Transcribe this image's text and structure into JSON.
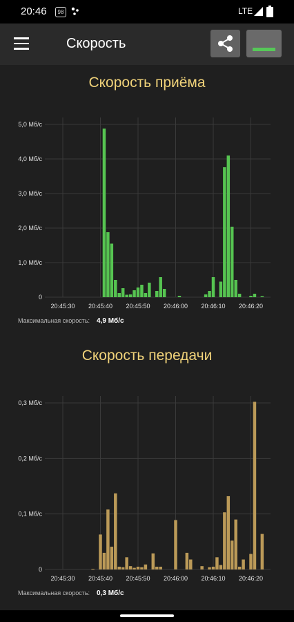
{
  "status": {
    "time": "20:46",
    "badge": "98",
    "network": "LTE"
  },
  "appbar": {
    "title": "Скорость",
    "menu_icon": "menu-icon",
    "share_icon": "share-icon",
    "graph_icon": "graph-view-icon"
  },
  "download": {
    "title": "Скорость приёма",
    "max_label": "Максимальная скорость:",
    "max_value": "4,9 Мб/с"
  },
  "upload": {
    "title": "Скорость передачи",
    "max_label": "Максимальная скорость:",
    "max_value": "0,3 Мб/с"
  },
  "colors": {
    "download": "#56c451",
    "upload": "#bb9a58",
    "title": "#f1d37a",
    "background": "#1f1f1f"
  },
  "chart_data": [
    {
      "type": "bar",
      "title": "Скорость приёма",
      "y_ticks": [
        "0",
        "1,0 Мб/с",
        "2,0 Мб/с",
        "3,0 Мб/с",
        "4,0 Мб/с",
        "5,0 Мб/с"
      ],
      "x_ticks": [
        "20:45:30",
        "20:45:40",
        "20:45:50",
        "20:46:00",
        "20:46:10",
        "20:46:20"
      ],
      "ylim": [
        0,
        5.0
      ],
      "grid": true,
      "x": [
        "20:45:41",
        "20:45:42",
        "20:45:43",
        "20:45:44",
        "20:45:45",
        "20:45:46",
        "20:45:47",
        "20:45:48",
        "20:45:49",
        "20:45:50",
        "20:45:51",
        "20:45:52",
        "20:45:53",
        "20:45:54",
        "20:45:55",
        "20:45:56",
        "20:45:57",
        "20:45:58",
        "20:45:59",
        "20:46:00",
        "20:46:01",
        "20:46:02",
        "20:46:03",
        "20:46:04",
        "20:46:05",
        "20:46:06",
        "20:46:07",
        "20:46:08",
        "20:46:09",
        "20:46:10",
        "20:46:11",
        "20:46:12",
        "20:46:13",
        "20:46:14",
        "20:46:15",
        "20:46:16",
        "20:46:17",
        "20:46:18",
        "20:46:19",
        "20:46:20",
        "20:46:21",
        "20:46:22",
        "20:46:23"
      ],
      "values": [
        4.88,
        1.88,
        1.55,
        0.5,
        0.12,
        0.26,
        0.07,
        0.08,
        0.2,
        0.28,
        0.36,
        0.12,
        0.42,
        0.0,
        0.18,
        0.58,
        0.24,
        0.0,
        0.0,
        0.0,
        0.04,
        0.0,
        0.0,
        0.0,
        0.0,
        0.0,
        0.0,
        0.08,
        0.18,
        0.58,
        0.0,
        0.45,
        3.76,
        4.1,
        2.04,
        0.5,
        0.1,
        0.0,
        0.0,
        0.04,
        0.1,
        0.0,
        0.03
      ]
    },
    {
      "type": "bar",
      "title": "Скорость передачи",
      "y_ticks": [
        "0",
        "0,1 Мб/с",
        "0,2 Мб/с",
        "0,3 Мб/с"
      ],
      "x_ticks": [
        "20:45:30",
        "20:45:40",
        "20:45:50",
        "20:46:00",
        "20:46:10",
        "20:46:20"
      ],
      "ylim": [
        0,
        0.3
      ],
      "grid": true,
      "x": [
        "20:45:38",
        "20:45:39",
        "20:45:40",
        "20:45:41",
        "20:45:42",
        "20:45:43",
        "20:45:44",
        "20:45:45",
        "20:45:46",
        "20:45:47",
        "20:45:48",
        "20:45:49",
        "20:45:50",
        "20:45:51",
        "20:45:52",
        "20:45:53",
        "20:45:54",
        "20:45:55",
        "20:45:56",
        "20:45:57",
        "20:45:58",
        "20:45:59",
        "20:46:00",
        "20:46:01",
        "20:46:02",
        "20:46:03",
        "20:46:04",
        "20:46:05",
        "20:46:06",
        "20:46:07",
        "20:46:08",
        "20:46:09",
        "20:46:10",
        "20:46:11",
        "20:46:12",
        "20:46:13",
        "20:46:14",
        "20:46:15",
        "20:46:16",
        "20:46:17",
        "20:46:18",
        "20:46:19",
        "20:46:20",
        "20:46:21",
        "20:46:22",
        "20:46:23"
      ],
      "values": [
        0.001,
        0.0,
        0.063,
        0.03,
        0.108,
        0.041,
        0.137,
        0.005,
        0.004,
        0.022,
        0.006,
        0.003,
        0.005,
        0.004,
        0.009,
        0.0,
        0.029,
        0.005,
        0.005,
        0.0,
        0.0,
        0.0,
        0.089,
        0.0,
        0.0,
        0.03,
        0.018,
        0.0,
        0.0,
        0.006,
        0.0,
        0.004,
        0.005,
        0.022,
        0.008,
        0.103,
        0.132,
        0.052,
        0.09,
        0.005,
        0.018,
        0.0,
        0.028,
        0.302,
        0.0,
        0.064
      ]
    }
  ]
}
